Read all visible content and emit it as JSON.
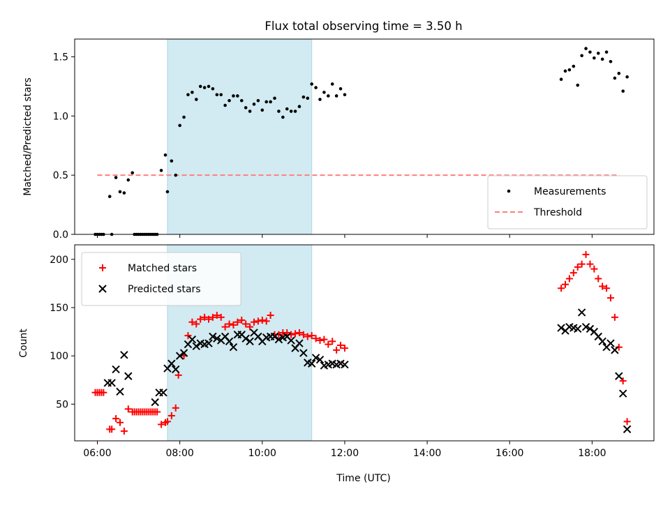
{
  "chart_data": [
    {
      "type": "scatter",
      "title": "Flux total observing time = 3.50 h",
      "ylabel": "Matched/Predicted stars",
      "xlim": [
        "05:27",
        "19:30"
      ],
      "ylim": [
        0,
        1.65
      ],
      "x_tick_labels": [
        "06:00",
        "08:00",
        "10:00",
        "12:00",
        "14:00",
        "16:00",
        "18:00"
      ],
      "x_tick_labels_visible": false,
      "y_ticks": [
        "0.0",
        "0.5",
        "1.0",
        "1.5"
      ],
      "shaded_interval": [
        "07:42",
        "11:12"
      ],
      "shaded_color": "#add8e6",
      "legend_position": "lower right",
      "threshold": {
        "name": "Threshold",
        "value": 0.5,
        "x_range": [
          "06:00",
          "18:40"
        ],
        "color": "#ff7f7f",
        "style": "dashed"
      },
      "series": [
        {
          "name": "Measurements",
          "marker": "dot",
          "color": "#000000",
          "points": [
            [
              "05:57",
              0.0
            ],
            [
              "06:00",
              0.0
            ],
            [
              "06:03",
              0.0
            ],
            [
              "06:06",
              0.0
            ],
            [
              "06:09",
              0.0
            ],
            [
              "06:18",
              0.32
            ],
            [
              "06:21",
              0.0
            ],
            [
              "06:27",
              0.48
            ],
            [
              "06:33",
              0.36
            ],
            [
              "06:39",
              0.35
            ],
            [
              "06:45",
              0.46
            ],
            [
              "06:51",
              0.52
            ],
            [
              "06:54",
              0.0
            ],
            [
              "06:57",
              0.0
            ],
            [
              "07:00",
              0.0
            ],
            [
              "07:03",
              0.0
            ],
            [
              "07:06",
              0.0
            ],
            [
              "07:09",
              0.0
            ],
            [
              "07:12",
              0.0
            ],
            [
              "07:15",
              0.0
            ],
            [
              "07:18",
              0.0
            ],
            [
              "07:21",
              0.0
            ],
            [
              "07:24",
              0.0
            ],
            [
              "07:27",
              0.0
            ],
            [
              "07:33",
              0.54
            ],
            [
              "07:39",
              0.67
            ],
            [
              "07:42",
              0.36
            ],
            [
              "07:48",
              0.62
            ],
            [
              "07:54",
              0.5
            ],
            [
              "08:00",
              0.92
            ],
            [
              "08:06",
              0.99
            ],
            [
              "08:12",
              1.18
            ],
            [
              "08:18",
              1.2
            ],
            [
              "08:24",
              1.14
            ],
            [
              "08:30",
              1.25
            ],
            [
              "08:36",
              1.24
            ],
            [
              "08:42",
              1.25
            ],
            [
              "08:48",
              1.23
            ],
            [
              "08:54",
              1.18
            ],
            [
              "09:00",
              1.18
            ],
            [
              "09:06",
              1.09
            ],
            [
              "09:12",
              1.13
            ],
            [
              "09:18",
              1.17
            ],
            [
              "09:24",
              1.17
            ],
            [
              "09:30",
              1.13
            ],
            [
              "09:36",
              1.07
            ],
            [
              "09:42",
              1.04
            ],
            [
              "09:48",
              1.1
            ],
            [
              "09:54",
              1.13
            ],
            [
              "10:00",
              1.05
            ],
            [
              "10:06",
              1.12
            ],
            [
              "10:12",
              1.12
            ],
            [
              "10:18",
              1.15
            ],
            [
              "10:24",
              1.04
            ],
            [
              "10:30",
              0.99
            ],
            [
              "10:36",
              1.06
            ],
            [
              "10:42",
              1.04
            ],
            [
              "10:48",
              1.04
            ],
            [
              "10:54",
              1.08
            ],
            [
              "11:00",
              1.16
            ],
            [
              "11:06",
              1.15
            ],
            [
              "11:12",
              1.27
            ],
            [
              "11:18",
              1.24
            ],
            [
              "11:24",
              1.14
            ],
            [
              "11:30",
              1.2
            ],
            [
              "11:36",
              1.17
            ],
            [
              "11:42",
              1.27
            ],
            [
              "11:48",
              1.17
            ],
            [
              "11:54",
              1.23
            ],
            [
              "12:00",
              1.18
            ],
            [
              "17:15",
              1.31
            ],
            [
              "17:21",
              1.38
            ],
            [
              "17:27",
              1.39
            ],
            [
              "17:33",
              1.42
            ],
            [
              "17:39",
              1.26
            ],
            [
              "17:45",
              1.51
            ],
            [
              "17:51",
              1.57
            ],
            [
              "17:57",
              1.54
            ],
            [
              "18:03",
              1.49
            ],
            [
              "18:09",
              1.53
            ],
            [
              "18:15",
              1.48
            ],
            [
              "18:21",
              1.54
            ],
            [
              "18:27",
              1.46
            ],
            [
              "18:33",
              1.32
            ],
            [
              "18:39",
              1.36
            ],
            [
              "18:45",
              1.21
            ],
            [
              "18:51",
              1.33
            ]
          ]
        }
      ]
    },
    {
      "type": "scatter",
      "ylabel": "Count",
      "xlabel": "Time (UTC)",
      "xlim": [
        "05:27",
        "19:30"
      ],
      "ylim": [
        12,
        215
      ],
      "x_tick_labels": [
        "06:00",
        "08:00",
        "10:00",
        "12:00",
        "14:00",
        "16:00",
        "18:00"
      ],
      "y_ticks": [
        "50",
        "100",
        "150",
        "200"
      ],
      "shaded_interval": [
        "07:42",
        "11:12"
      ],
      "shaded_color": "#add8e6",
      "legend_position": "upper left",
      "series": [
        {
          "name": "Matched stars",
          "marker": "plus",
          "color": "#ff0000",
          "points": [
            [
              "05:57",
              62
            ],
            [
              "06:00",
              62
            ],
            [
              "06:03",
              62
            ],
            [
              "06:06",
              62
            ],
            [
              "06:09",
              62
            ],
            [
              "06:18",
              24
            ],
            [
              "06:21",
              24
            ],
            [
              "06:27",
              35
            ],
            [
              "06:33",
              31
            ],
            [
              "06:39",
              22
            ],
            [
              "06:45",
              45
            ],
            [
              "06:51",
              42
            ],
            [
              "06:54",
              42
            ],
            [
              "06:57",
              42
            ],
            [
              "07:00",
              42
            ],
            [
              "07:03",
              42
            ],
            [
              "07:06",
              42
            ],
            [
              "07:09",
              42
            ],
            [
              "07:12",
              42
            ],
            [
              "07:15",
              42
            ],
            [
              "07:18",
              42
            ],
            [
              "07:21",
              42
            ],
            [
              "07:24",
              42
            ],
            [
              "07:27",
              42
            ],
            [
              "07:33",
              29
            ],
            [
              "07:39",
              31
            ],
            [
              "07:42",
              32
            ],
            [
              "07:48",
              38
            ],
            [
              "07:54",
              46
            ],
            [
              "07:58",
              80
            ],
            [
              "08:06",
              100
            ],
            [
              "08:12",
              121
            ],
            [
              "08:18",
              135
            ],
            [
              "08:24",
              133
            ],
            [
              "08:30",
              138
            ],
            [
              "08:36",
              140
            ],
            [
              "08:42",
              138
            ],
            [
              "08:48",
              140
            ],
            [
              "08:54",
              142
            ],
            [
              "09:00",
              140
            ],
            [
              "09:06",
              130
            ],
            [
              "09:12",
              133
            ],
            [
              "09:18",
              132
            ],
            [
              "09:24",
              135
            ],
            [
              "09:30",
              137
            ],
            [
              "09:36",
              133
            ],
            [
              "09:42",
              130
            ],
            [
              "09:48",
              135
            ],
            [
              "09:54",
              136
            ],
            [
              "10:00",
              137
            ],
            [
              "10:06",
              136
            ],
            [
              "10:12",
              142
            ],
            [
              "10:18",
              122
            ],
            [
              "10:24",
              122
            ],
            [
              "10:30",
              124
            ],
            [
              "10:36",
              124
            ],
            [
              "10:42",
              122
            ],
            [
              "10:48",
              123
            ],
            [
              "10:54",
              124
            ],
            [
              "11:00",
              122
            ],
            [
              "11:06",
              120
            ],
            [
              "11:12",
              121
            ],
            [
              "11:18",
              118
            ],
            [
              "11:24",
              116
            ],
            [
              "11:30",
              117
            ],
            [
              "11:36",
              112
            ],
            [
              "11:42",
              115
            ],
            [
              "11:48",
              106
            ],
            [
              "11:54",
              111
            ],
            [
              "12:00",
              108
            ],
            [
              "17:15",
              170
            ],
            [
              "17:21",
              174
            ],
            [
              "17:27",
              180
            ],
            [
              "17:33",
              186
            ],
            [
              "17:39",
              192
            ],
            [
              "17:45",
              195
            ],
            [
              "17:51",
              205
            ],
            [
              "17:57",
              195
            ],
            [
              "18:03",
              190
            ],
            [
              "18:09",
              180
            ],
            [
              "18:15",
              172
            ],
            [
              "18:21",
              170
            ],
            [
              "18:27",
              160
            ],
            [
              "18:33",
              140
            ],
            [
              "18:39",
              109
            ],
            [
              "18:45",
              74
            ],
            [
              "18:51",
              32
            ]
          ]
        },
        {
          "name": "Predicted stars",
          "marker": "x",
          "color": "#000000",
          "points": [
            [
              "06:15",
              72
            ],
            [
              "06:21",
              72
            ],
            [
              "06:27",
              86
            ],
            [
              "06:33",
              63
            ],
            [
              "06:39",
              101
            ],
            [
              "06:45",
              79
            ],
            [
              "07:24",
              52
            ],
            [
              "07:30",
              62
            ],
            [
              "07:36",
              62
            ],
            [
              "07:42",
              87
            ],
            [
              "07:48",
              92
            ],
            [
              "07:54",
              86
            ],
            [
              "08:00",
              100
            ],
            [
              "08:06",
              103
            ],
            [
              "08:12",
              112
            ],
            [
              "08:18",
              117
            ],
            [
              "08:24",
              110
            ],
            [
              "08:30",
              113
            ],
            [
              "08:36",
              112
            ],
            [
              "08:42",
              113
            ],
            [
              "08:48",
              120
            ],
            [
              "08:54",
              118
            ],
            [
              "09:00",
              116
            ],
            [
              "09:06",
              120
            ],
            [
              "09:12",
              115
            ],
            [
              "09:18",
              109
            ],
            [
              "09:24",
              122
            ],
            [
              "09:30",
              122
            ],
            [
              "09:36",
              118
            ],
            [
              "09:42",
              115
            ],
            [
              "09:48",
              124
            ],
            [
              "09:54",
              120
            ],
            [
              "10:00",
              115
            ],
            [
              "10:06",
              119
            ],
            [
              "10:12",
              120
            ],
            [
              "10:18",
              120
            ],
            [
              "10:24",
              117
            ],
            [
              "10:30",
              119
            ],
            [
              "10:36",
              120
            ],
            [
              "10:42",
              116
            ],
            [
              "10:48",
              108
            ],
            [
              "10:54",
              113
            ],
            [
              "11:00",
              103
            ],
            [
              "11:06",
              93
            ],
            [
              "11:12",
              92
            ],
            [
              "11:18",
              98
            ],
            [
              "11:24",
              96
            ],
            [
              "11:30",
              90
            ],
            [
              "11:36",
              91
            ],
            [
              "11:42",
              92
            ],
            [
              "11:48",
              91
            ],
            [
              "11:54",
              92
            ],
            [
              "12:00",
              91
            ],
            [
              "17:15",
              129
            ],
            [
              "17:21",
              126
            ],
            [
              "17:27",
              130
            ],
            [
              "17:33",
              129
            ],
            [
              "17:39",
              128
            ],
            [
              "17:45",
              145
            ],
            [
              "17:51",
              130
            ],
            [
              "17:57",
              128
            ],
            [
              "18:03",
              125
            ],
            [
              "18:09",
              120
            ],
            [
              "18:15",
              115
            ],
            [
              "18:21",
              109
            ],
            [
              "18:27",
              113
            ],
            [
              "18:33",
              106
            ],
            [
              "18:39",
              79
            ],
            [
              "18:45",
              61
            ],
            [
              "18:51",
              24
            ]
          ]
        }
      ]
    }
  ]
}
